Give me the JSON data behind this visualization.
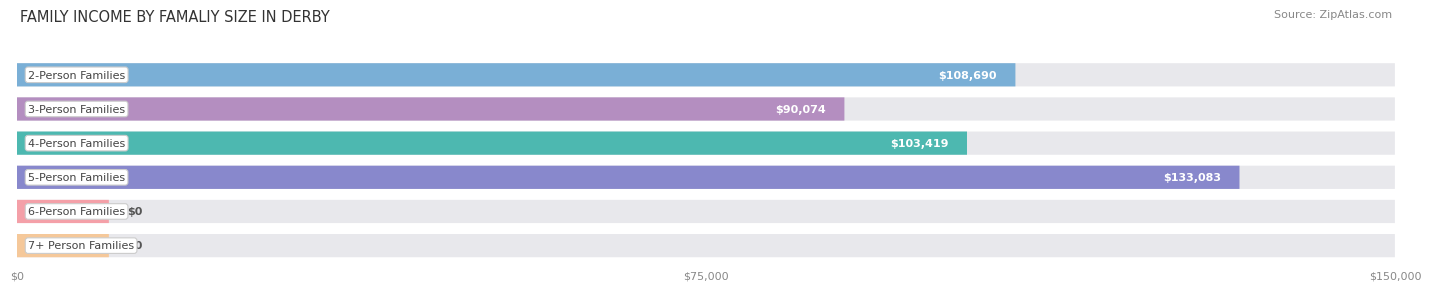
{
  "title": "FAMILY INCOME BY FAMALIY SIZE IN DERBY",
  "source": "Source: ZipAtlas.com",
  "categories": [
    "2-Person Families",
    "3-Person Families",
    "4-Person Families",
    "5-Person Families",
    "6-Person Families",
    "7+ Person Families"
  ],
  "values": [
    108690,
    90074,
    103419,
    133083,
    0,
    0
  ],
  "bar_colors": [
    "#7aafd6",
    "#b48ec0",
    "#4db8b0",
    "#8888cc",
    "#f4a0a8",
    "#f5c89a"
  ],
  "xlim": [
    0,
    150000
  ],
  "xticks": [
    0,
    75000,
    150000
  ],
  "xtick_labels": [
    "$0",
    "$75,000",
    "$150,000"
  ],
  "fig_bg_color": "#ffffff",
  "bar_bg_color": "#e8e8ec",
  "title_fontsize": 10.5,
  "source_fontsize": 8,
  "label_fontsize": 8,
  "value_fontsize": 8,
  "bar_height": 0.68,
  "zero_bar_width": 10000
}
